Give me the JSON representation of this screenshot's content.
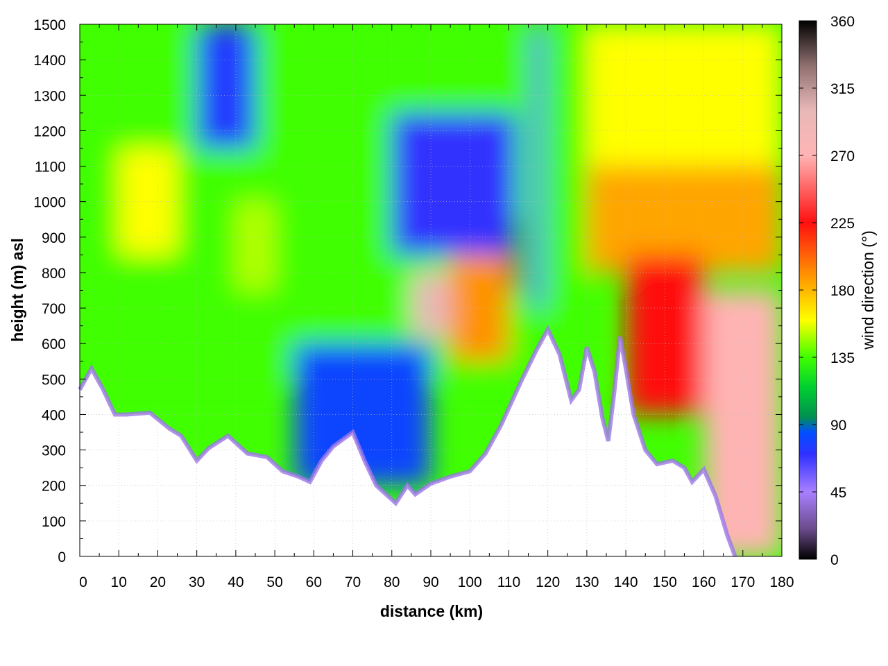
{
  "chart_data": {
    "type": "heatmap",
    "title": "",
    "xlabel": "distance (km)",
    "ylabel": "height (m) asl",
    "colorbar_label": "wind direction (°)",
    "xlim": [
      0,
      180
    ],
    "ylim": [
      0,
      1500
    ],
    "x_ticks": [
      "0",
      "10",
      "20",
      "30",
      "40",
      "50",
      "60",
      "70",
      "80",
      "90",
      "100",
      "110",
      "120",
      "130",
      "140",
      "150",
      "160",
      "170",
      "180"
    ],
    "y_ticks": [
      "0",
      "100",
      "200",
      "300",
      "400",
      "500",
      "600",
      "700",
      "800",
      "900",
      "1000",
      "1100",
      "1200",
      "1300",
      "1400",
      "1500"
    ],
    "colorbar_range": [
      0,
      360
    ],
    "colorbar_ticks": [
      "0",
      "45",
      "90",
      "135",
      "180",
      "225",
      "270",
      "315",
      "360"
    ],
    "grid": true,
    "colormap": [
      {
        "value": 0,
        "color": "#000000"
      },
      {
        "value": 20,
        "color": "#6a4a8a"
      },
      {
        "value": 45,
        "color": "#a880ff"
      },
      {
        "value": 70,
        "color": "#3030ff"
      },
      {
        "value": 85,
        "color": "#0050ff"
      },
      {
        "value": 95,
        "color": "#009050"
      },
      {
        "value": 115,
        "color": "#00d030"
      },
      {
        "value": 135,
        "color": "#40ff00"
      },
      {
        "value": 160,
        "color": "#ffff00"
      },
      {
        "value": 185,
        "color": "#ffa500"
      },
      {
        "value": 225,
        "color": "#ff1010"
      },
      {
        "value": 270,
        "color": "#ffb4b4"
      },
      {
        "value": 300,
        "color": "#e8b8b8"
      },
      {
        "value": 330,
        "color": "#907070"
      },
      {
        "value": 360,
        "color": "#000000"
      }
    ],
    "terrain": [
      {
        "x": 0,
        "y": 470
      },
      {
        "x": 3,
        "y": 530
      },
      {
        "x": 6,
        "y": 470
      },
      {
        "x": 9,
        "y": 400
      },
      {
        "x": 12,
        "y": 400
      },
      {
        "x": 18,
        "y": 405
      },
      {
        "x": 23,
        "y": 360
      },
      {
        "x": 26,
        "y": 340
      },
      {
        "x": 30,
        "y": 270
      },
      {
        "x": 33,
        "y": 305
      },
      {
        "x": 38,
        "y": 340
      },
      {
        "x": 43,
        "y": 290
      },
      {
        "x": 48,
        "y": 280
      },
      {
        "x": 52,
        "y": 240
      },
      {
        "x": 56,
        "y": 225
      },
      {
        "x": 59,
        "y": 210
      },
      {
        "x": 62,
        "y": 270
      },
      {
        "x": 65,
        "y": 310
      },
      {
        "x": 70,
        "y": 350
      },
      {
        "x": 73,
        "y": 270
      },
      {
        "x": 76,
        "y": 200
      },
      {
        "x": 81,
        "y": 150
      },
      {
        "x": 84,
        "y": 200
      },
      {
        "x": 86,
        "y": 175
      },
      {
        "x": 90,
        "y": 205
      },
      {
        "x": 95,
        "y": 225
      },
      {
        "x": 100,
        "y": 240
      },
      {
        "x": 104,
        "y": 290
      },
      {
        "x": 108,
        "y": 370
      },
      {
        "x": 113,
        "y": 490
      },
      {
        "x": 117,
        "y": 580
      },
      {
        "x": 120,
        "y": 640
      },
      {
        "x": 123,
        "y": 570
      },
      {
        "x": 126,
        "y": 440
      },
      {
        "x": 128,
        "y": 470
      },
      {
        "x": 130,
        "y": 590
      },
      {
        "x": 132,
        "y": 520
      },
      {
        "x": 134,
        "y": 390
      },
      {
        "x": 135.5,
        "y": 325
      },
      {
        "x": 137,
        "y": 460
      },
      {
        "x": 138.5,
        "y": 620
      },
      {
        "x": 140,
        "y": 530
      },
      {
        "x": 142,
        "y": 400
      },
      {
        "x": 145,
        "y": 300
      },
      {
        "x": 148,
        "y": 260
      },
      {
        "x": 152,
        "y": 270
      },
      {
        "x": 155,
        "y": 250
      },
      {
        "x": 157,
        "y": 210
      },
      {
        "x": 160,
        "y": 245
      },
      {
        "x": 163,
        "y": 170
      },
      {
        "x": 166,
        "y": 60
      },
      {
        "x": 168,
        "y": 0
      }
    ],
    "regions": [
      {
        "x": [
          0,
          130
        ],
        "y": [
          500,
          1500
        ],
        "value": 135
      },
      {
        "x": [
          10,
          25
        ],
        "y": [
          850,
          1150
        ],
        "value": 160
      },
      {
        "x": [
          40,
          50
        ],
        "y": [
          750,
          1000
        ],
        "value": 150
      },
      {
        "x": [
          30,
          45
        ],
        "y": [
          1150,
          1500
        ],
        "value": 75
      },
      {
        "x": [
          80,
          112
        ],
        "y": [
          850,
          1250
        ],
        "value": 70
      },
      {
        "x": [
          85,
          97
        ],
        "y": [
          620,
          800
        ],
        "value": 300
      },
      {
        "x": [
          95,
          110
        ],
        "y": [
          550,
          850
        ],
        "value": 190
      },
      {
        "x": [
          55,
          90
        ],
        "y": [
          200,
          600
        ],
        "value": 80
      },
      {
        "x": [
          116,
          119
        ],
        "y": [
          700,
          1500
        ],
        "value": 60
      },
      {
        "x": [
          110,
          113
        ],
        "y": [
          750,
          950
        ],
        "value": 10
      },
      {
        "x": [
          130,
          180
        ],
        "y": [
          1100,
          1500
        ],
        "value": 160
      },
      {
        "x": [
          130,
          180
        ],
        "y": [
          800,
          1100
        ],
        "value": 185
      },
      {
        "x": [
          140,
          160
        ],
        "y": [
          400,
          850
        ],
        "value": 225
      },
      {
        "x": [
          160,
          180
        ],
        "y": [
          0,
          750
        ],
        "value": 270
      }
    ]
  }
}
